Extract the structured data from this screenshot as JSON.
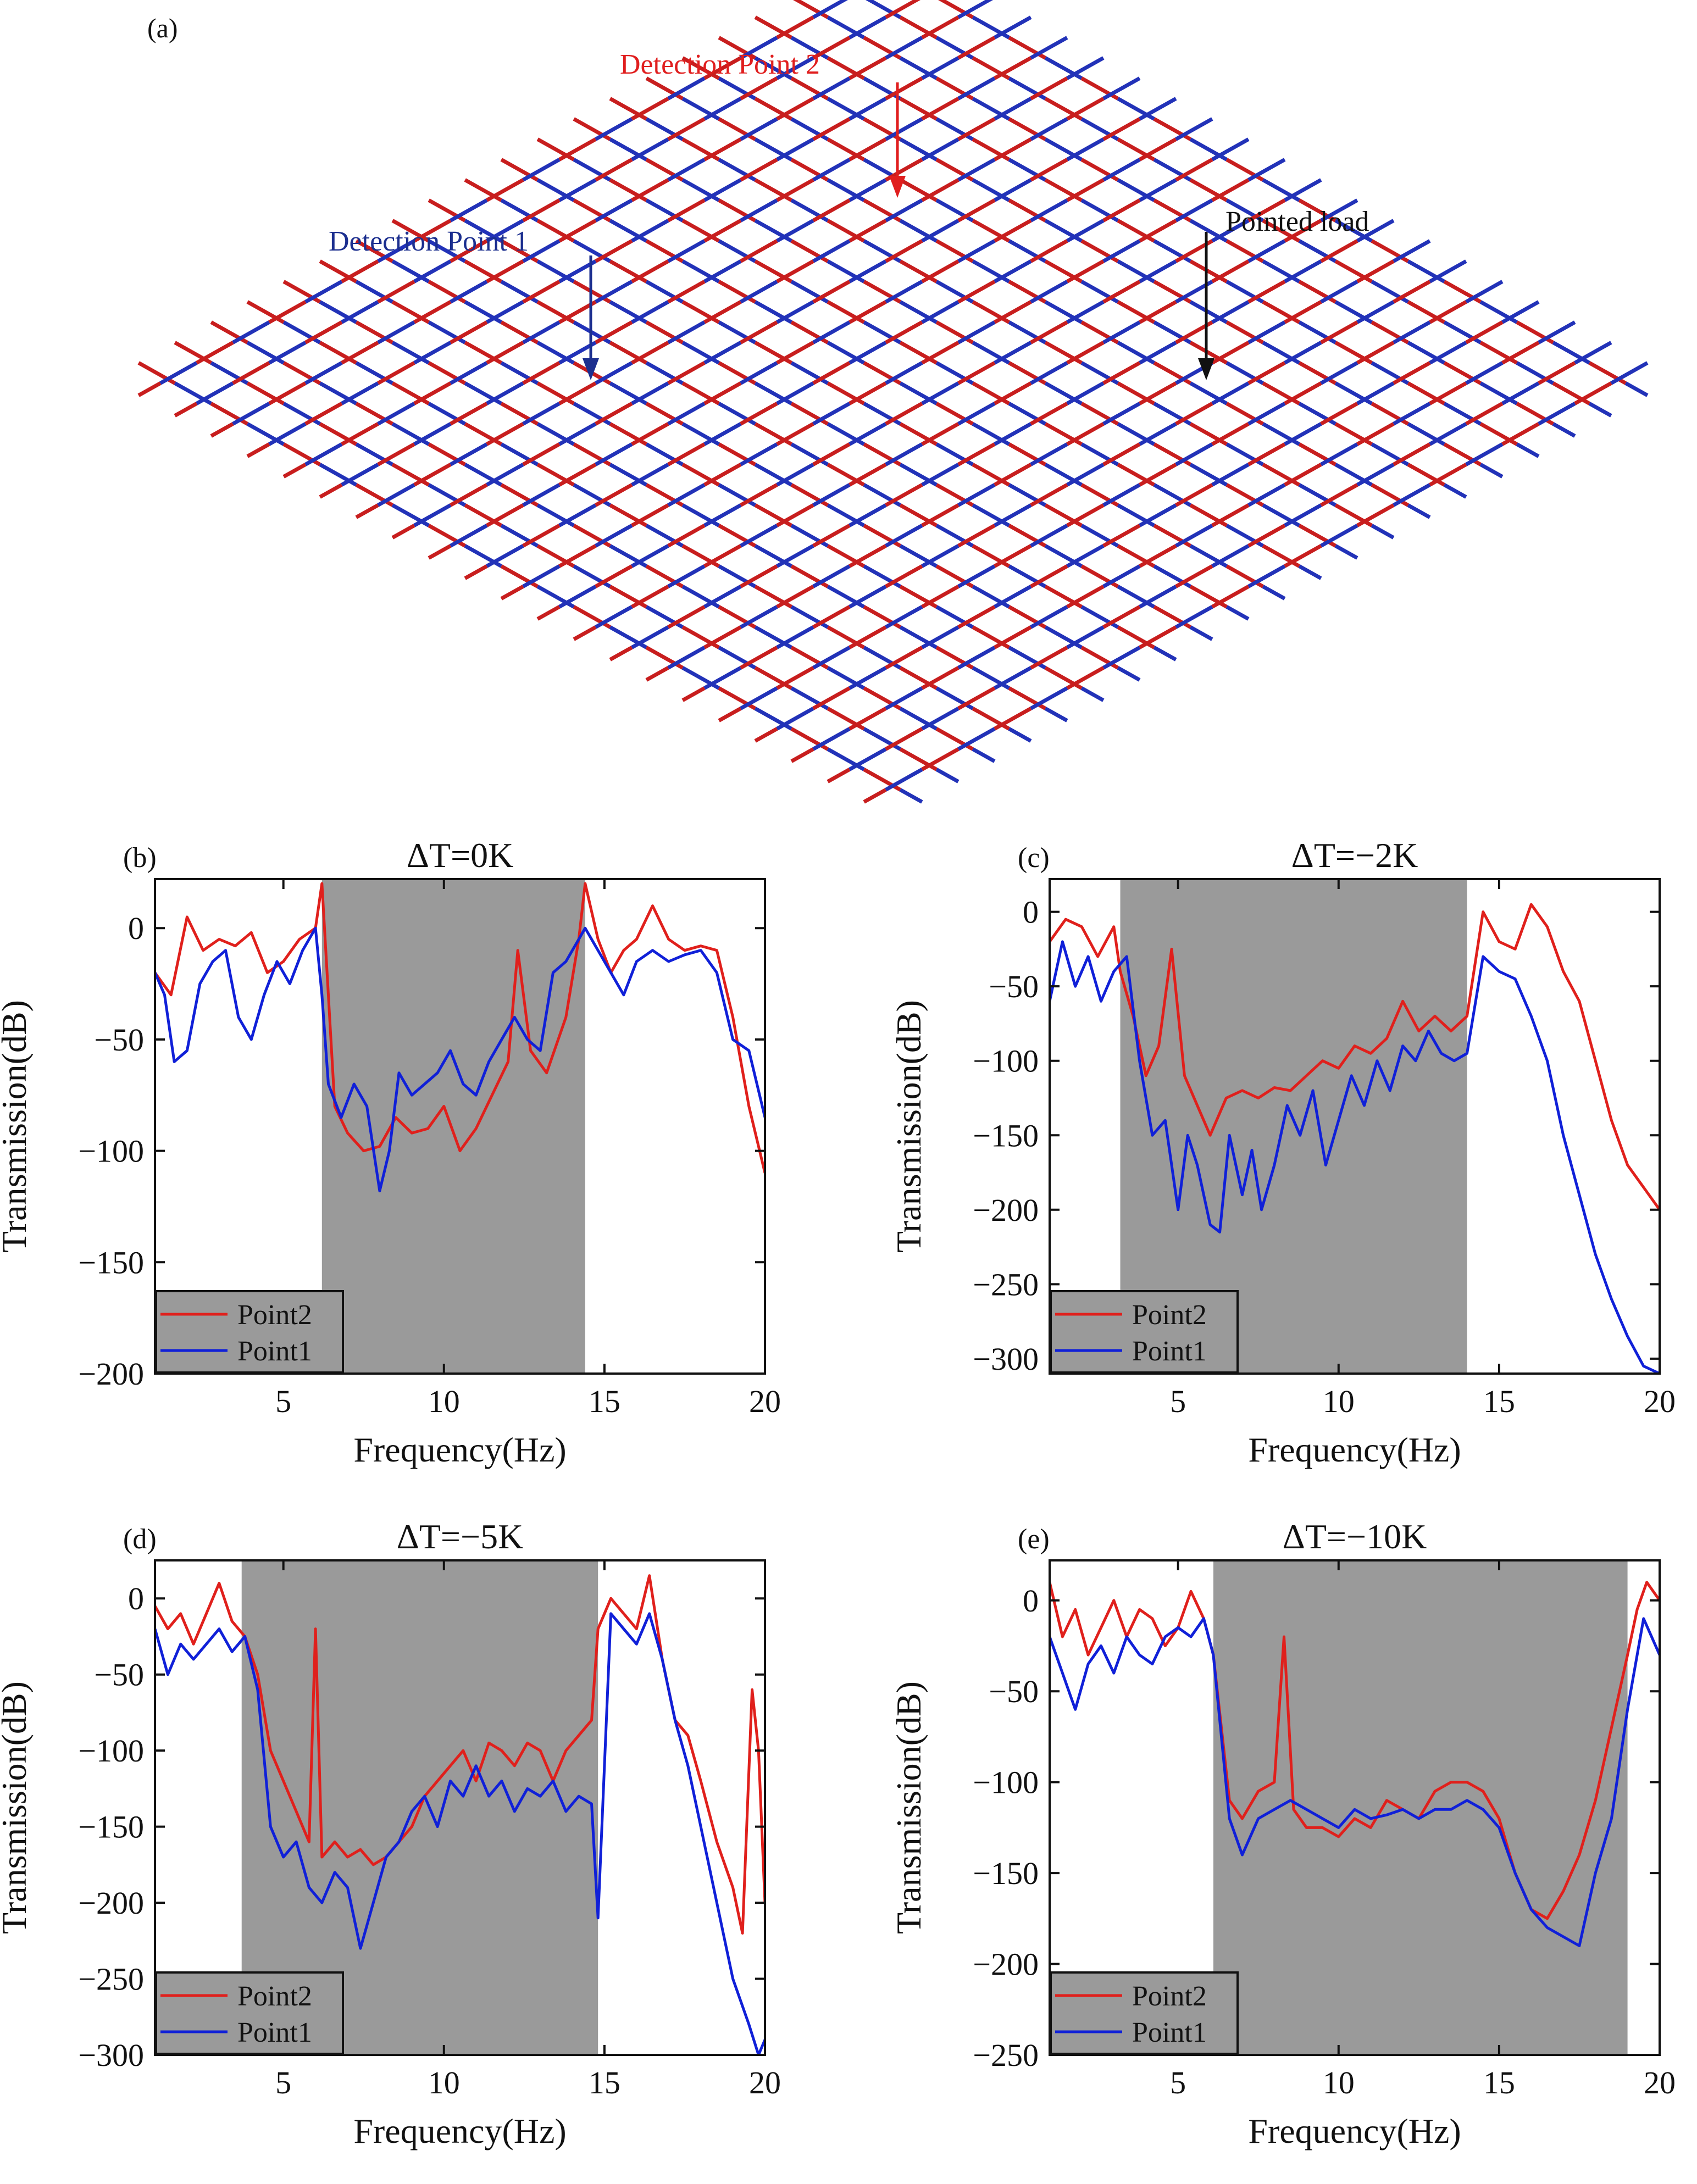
{
  "figure": {
    "panel_a": {
      "label": "(a)",
      "annotations": {
        "detection_point_2": "Detection Point 2",
        "detection_point_1": "Detection Point 1",
        "pointed_load": "Pointed load"
      },
      "colors": {
        "red": "#c81e1e",
        "blue": "#2232b8",
        "point1_arrow": "#1c2f8f",
        "point2_arrow": "#e01e1e",
        "load_arrow": "#111111"
      }
    }
  },
  "colors": {
    "point2": "#e0201c",
    "point2_dark": "#b01218",
    "point1": "#1020d8",
    "band": "#9a9a9a"
  },
  "chart_data": [
    {
      "type": "line",
      "panel": "(b)",
      "title": "ΔT=0K",
      "xlabel": "Frequency(Hz)",
      "ylabel": "Transmission(dB)",
      "xlim": [
        1,
        20
      ],
      "ylim": [
        -200,
        22
      ],
      "xticks": [
        5,
        10,
        15,
        20
      ],
      "yticks": [
        0,
        -50,
        -100,
        -150,
        -200
      ],
      "ytick_labels": [
        "0",
        "−50",
        "−100",
        "−150",
        "−200"
      ],
      "band": [
        6.2,
        14.4
      ],
      "legend": [
        "Point2",
        "Point1"
      ],
      "series": [
        {
          "name": "Point2",
          "x": [
            1,
            1.5,
            2,
            2.5,
            3,
            3.5,
            4,
            4.5,
            5,
            5.5,
            6,
            6.2,
            6.6,
            7,
            7.5,
            8,
            8.5,
            9,
            9.5,
            10,
            10.5,
            11,
            11.5,
            12,
            12.3,
            12.7,
            13.2,
            13.8,
            14.2,
            14.4,
            14.8,
            15.2,
            15.6,
            16,
            16.5,
            17,
            17.5,
            18,
            18.5,
            19,
            19.5,
            20
          ],
          "y": [
            -20,
            -30,
            5,
            -10,
            -5,
            -8,
            -2,
            -20,
            -15,
            -5,
            0,
            20,
            -80,
            -92,
            -100,
            -98,
            -85,
            -92,
            -90,
            -80,
            -100,
            -90,
            -75,
            -60,
            -10,
            -55,
            -65,
            -40,
            -5,
            20,
            -5,
            -20,
            -10,
            -5,
            10,
            -5,
            -10,
            -8,
            -10,
            -40,
            -80,
            -110
          ]
        },
        {
          "name": "Point1",
          "x": [
            1,
            1.3,
            1.6,
            2,
            2.4,
            2.8,
            3.2,
            3.6,
            4,
            4.4,
            4.8,
            5.2,
            5.6,
            6,
            6.2,
            6.4,
            6.8,
            7.2,
            7.6,
            8,
            8.3,
            8.6,
            9,
            9.4,
            9.8,
            10.2,
            10.6,
            11,
            11.4,
            11.8,
            12.2,
            12.6,
            13,
            13.4,
            13.8,
            14.2,
            14.4,
            14.8,
            15.2,
            15.6,
            16,
            16.5,
            17,
            17.5,
            18,
            18.5,
            19,
            19.5,
            20
          ],
          "y": [
            -20,
            -30,
            -60,
            -55,
            -25,
            -15,
            -10,
            -40,
            -50,
            -30,
            -15,
            -25,
            -10,
            0,
            -30,
            -70,
            -85,
            -70,
            -80,
            -118,
            -100,
            -65,
            -75,
            -70,
            -65,
            -55,
            -70,
            -75,
            -60,
            -50,
            -40,
            -50,
            -55,
            -20,
            -15,
            -5,
            0,
            -10,
            -20,
            -30,
            -15,
            -10,
            -15,
            -12,
            -10,
            -20,
            -50,
            -55,
            -85
          ]
        }
      ]
    },
    {
      "type": "line",
      "panel": "(c)",
      "title": "ΔT=−2K",
      "xlabel": "Frequency(Hz)",
      "ylabel": "Transmission(dB)",
      "xlim": [
        1,
        20
      ],
      "ylim": [
        -310,
        22
      ],
      "xticks": [
        5,
        10,
        15,
        20
      ],
      "yticks": [
        0,
        -50,
        -100,
        -150,
        -200,
        -250,
        -300
      ],
      "ytick_labels": [
        "0",
        "−50",
        "−100",
        "−150",
        "−200",
        "−250",
        "−300"
      ],
      "band": [
        3.2,
        14
      ],
      "legend": [
        "Point2",
        "Point1"
      ],
      "series": [
        {
          "name": "Point2",
          "x": [
            1,
            1.5,
            2,
            2.5,
            3,
            3.2,
            3.6,
            4,
            4.4,
            4.8,
            5.2,
            5.6,
            6,
            6.5,
            7,
            7.5,
            8,
            8.5,
            9,
            9.5,
            10,
            10.5,
            11,
            11.5,
            12,
            12.5,
            13,
            13.5,
            14,
            14.5,
            15,
            15.5,
            16,
            16.5,
            17,
            17.5,
            18,
            18.5,
            19,
            19.5,
            20
          ],
          "y": [
            -20,
            -5,
            -10,
            -30,
            -10,
            -40,
            -70,
            -110,
            -90,
            -25,
            -110,
            -130,
            -150,
            -125,
            -120,
            -125,
            -118,
            -120,
            -110,
            -100,
            -105,
            -90,
            -95,
            -85,
            -60,
            -80,
            -70,
            -80,
            -70,
            0,
            -20,
            -25,
            5,
            -10,
            -40,
            -60,
            -100,
            -140,
            -170,
            -185,
            -200
          ]
        },
        {
          "name": "Point1",
          "x": [
            1,
            1.4,
            1.8,
            2.2,
            2.6,
            3,
            3.4,
            3.8,
            4.2,
            4.6,
            5,
            5.3,
            5.6,
            6,
            6.3,
            6.6,
            7,
            7.3,
            7.6,
            8,
            8.4,
            8.8,
            9.2,
            9.6,
            10,
            10.4,
            10.8,
            11.2,
            11.6,
            12,
            12.4,
            12.8,
            13.2,
            13.6,
            14,
            14.5,
            15,
            15.5,
            16,
            16.5,
            17,
            17.5,
            18,
            18.5,
            19,
            19.5,
            20
          ],
          "y": [
            -60,
            -20,
            -50,
            -30,
            -60,
            -40,
            -30,
            -100,
            -150,
            -140,
            -200,
            -150,
            -170,
            -210,
            -215,
            -150,
            -190,
            -160,
            -200,
            -170,
            -130,
            -150,
            -120,
            -170,
            -140,
            -110,
            -130,
            -100,
            -120,
            -90,
            -100,
            -80,
            -95,
            -100,
            -95,
            -30,
            -40,
            -45,
            -70,
            -100,
            -150,
            -190,
            -230,
            -260,
            -285,
            -305,
            -310
          ]
        }
      ]
    },
    {
      "type": "line",
      "panel": "(d)",
      "title": "ΔT=−5K",
      "xlabel": "Frequency(Hz)",
      "ylabel": "Transmission(dB)",
      "xlim": [
        1,
        20
      ],
      "ylim": [
        -300,
        25
      ],
      "xticks": [
        5,
        10,
        15,
        20
      ],
      "yticks": [
        0,
        -50,
        -100,
        -150,
        -200,
        -250,
        -300
      ],
      "ytick_labels": [
        "0",
        "−50",
        "−100",
        "−150",
        "−200",
        "−250",
        "−300"
      ],
      "band": [
        3.7,
        14.8
      ],
      "legend": [
        "Point2",
        "Point1"
      ],
      "series": [
        {
          "name": "Point2",
          "x": [
            1,
            1.4,
            1.8,
            2.2,
            2.6,
            3,
            3.4,
            3.8,
            4.2,
            4.6,
            5,
            5.4,
            5.8,
            6,
            6.2,
            6.6,
            7,
            7.4,
            7.8,
            8.2,
            8.6,
            9,
            9.4,
            9.8,
            10.2,
            10.6,
            11,
            11.4,
            11.8,
            12.2,
            12.6,
            13,
            13.4,
            13.8,
            14.2,
            14.6,
            14.8,
            15.2,
            15.6,
            16,
            16.4,
            16.8,
            17.2,
            17.6,
            18,
            18.5,
            19,
            19.3,
            19.6,
            19.8,
            20
          ],
          "y": [
            -5,
            -20,
            -10,
            -30,
            -10,
            10,
            -15,
            -25,
            -50,
            -100,
            -120,
            -140,
            -160,
            -20,
            -170,
            -160,
            -170,
            -165,
            -175,
            -170,
            -160,
            -150,
            -130,
            -120,
            -110,
            -100,
            -120,
            -95,
            -100,
            -110,
            -95,
            -100,
            -120,
            -100,
            -90,
            -80,
            -20,
            0,
            -10,
            -20,
            15,
            -40,
            -80,
            -90,
            -120,
            -160,
            -190,
            -220,
            -60,
            -100,
            -200
          ]
        },
        {
          "name": "Point1",
          "x": [
            1,
            1.4,
            1.8,
            2.2,
            2.6,
            3,
            3.4,
            3.8,
            4.2,
            4.6,
            5,
            5.4,
            5.8,
            6.2,
            6.6,
            7,
            7.4,
            7.8,
            8.2,
            8.6,
            9,
            9.4,
            9.8,
            10.2,
            10.6,
            11,
            11.4,
            11.8,
            12.2,
            12.6,
            13,
            13.4,
            13.8,
            14.2,
            14.6,
            14.8,
            15.2,
            15.6,
            16,
            16.4,
            16.8,
            17.2,
            17.6,
            18,
            18.5,
            19,
            19.5,
            19.8,
            20
          ],
          "y": [
            -20,
            -50,
            -30,
            -40,
            -30,
            -20,
            -35,
            -25,
            -60,
            -150,
            -170,
            -160,
            -190,
            -200,
            -180,
            -190,
            -230,
            -200,
            -170,
            -160,
            -140,
            -130,
            -150,
            -120,
            -130,
            -110,
            -130,
            -120,
            -140,
            -125,
            -130,
            -120,
            -140,
            -130,
            -135,
            -210,
            -10,
            -20,
            -30,
            -10,
            -40,
            -80,
            -110,
            -150,
            -200,
            -250,
            -280,
            -300,
            -290
          ]
        }
      ]
    },
    {
      "type": "line",
      "panel": "(e)",
      "title": "ΔT=−10K",
      "xlabel": "Frequency(Hz)",
      "ylabel": "Transmission(dB)",
      "xlim": [
        1,
        20
      ],
      "ylim": [
        -250,
        22
      ],
      "xticks": [
        5,
        10,
        15,
        20
      ],
      "yticks": [
        0,
        -50,
        -100,
        -150,
        -200,
        -250
      ],
      "ytick_labels": [
        "0",
        "−50",
        "−100",
        "−150",
        "−200",
        "−250"
      ],
      "band": [
        6.1,
        19
      ],
      "legend": [
        "Point2",
        "Point1"
      ],
      "series": [
        {
          "name": "Point2",
          "x": [
            1,
            1.4,
            1.8,
            2.2,
            2.6,
            3,
            3.4,
            3.8,
            4.2,
            4.6,
            5,
            5.4,
            5.8,
            6.1,
            6.6,
            7,
            7.5,
            8,
            8.3,
            8.6,
            9,
            9.5,
            10,
            10.5,
            11,
            11.5,
            12,
            12.5,
            13,
            13.5,
            14,
            14.5,
            15,
            15.5,
            16,
            16.5,
            17,
            17.5,
            18,
            18.5,
            19,
            19.3,
            19.6,
            20
          ],
          "y": [
            10,
            -20,
            -5,
            -30,
            -15,
            0,
            -20,
            -5,
            -10,
            -25,
            -15,
            5,
            -10,
            -30,
            -110,
            -120,
            -105,
            -100,
            -20,
            -115,
            -125,
            -125,
            -130,
            -120,
            -125,
            -110,
            -115,
            -120,
            -105,
            -100,
            -100,
            -105,
            -120,
            -150,
            -170,
            -175,
            -160,
            -140,
            -110,
            -70,
            -30,
            -5,
            10,
            0
          ]
        },
        {
          "name": "Point1",
          "x": [
            1,
            1.4,
            1.8,
            2.2,
            2.6,
            3,
            3.4,
            3.8,
            4.2,
            4.6,
            5,
            5.4,
            5.8,
            6.1,
            6.6,
            7,
            7.5,
            8,
            8.5,
            9,
            9.5,
            10,
            10.5,
            11,
            11.5,
            12,
            12.5,
            13,
            13.5,
            14,
            14.5,
            15,
            15.5,
            16,
            16.5,
            17,
            17.5,
            18,
            18.5,
            19,
            19.5,
            20
          ],
          "y": [
            -20,
            -40,
            -60,
            -35,
            -25,
            -40,
            -20,
            -30,
            -35,
            -20,
            -15,
            -20,
            -10,
            -30,
            -120,
            -140,
            -120,
            -115,
            -110,
            -115,
            -120,
            -125,
            -115,
            -120,
            -118,
            -115,
            -120,
            -115,
            -115,
            -110,
            -115,
            -125,
            -150,
            -170,
            -180,
            -185,
            -190,
            -150,
            -120,
            -60,
            -10,
            -30
          ]
        }
      ]
    }
  ]
}
